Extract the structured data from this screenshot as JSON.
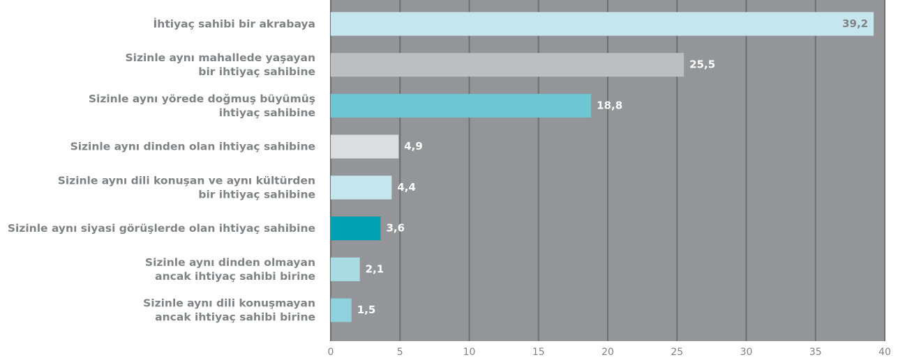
{
  "chart_data": {
    "type": "bar",
    "orientation": "horizontal",
    "categories": [
      [
        "İhtiyaç sahibi bir akrabaya"
      ],
      [
        "Sizinle aynı mahallede yaşayan",
        "bir ihtiyaç sahibine"
      ],
      [
        "Sizinle aynı yörede doğmuş büyümüş",
        "ihtiyaç sahibine"
      ],
      [
        "Sizinle aynı dinden olan ihtiyaç sahibine"
      ],
      [
        "Sizinle aynı dili konuşan ve aynı kültürden",
        "bir ihtiyaç sahibine"
      ],
      [
        "Sizinle aynı siyasi görüşlerde olan ihtiyaç sahibine"
      ],
      [
        "Sizinle aynı dinden olmayan",
        "ancak ihtiyaç sahibi birine"
      ],
      [
        "Sizinle aynı dili konuşmayan",
        "ancak ihtiyaç sahibi birine"
      ]
    ],
    "values": [
      39.2,
      25.5,
      18.8,
      4.9,
      4.4,
      3.6,
      2.1,
      1.5
    ],
    "value_labels": [
      "39,2",
      "25,5",
      "18,8",
      "4,9",
      "4,4",
      "3,6",
      "2,1",
      "1,5"
    ],
    "colors": [
      "#c6e6ed",
      "#bcbec0",
      "#6fc6d3",
      "#dcdddf",
      "#c6e6ed",
      "#00a0b1",
      "#a9dbe3",
      "#8fd1dc"
    ],
    "xlim": [
      0,
      40
    ],
    "xticks": [
      0,
      5,
      10,
      15,
      20,
      25,
      30,
      35,
      40
    ],
    "grid": true
  }
}
